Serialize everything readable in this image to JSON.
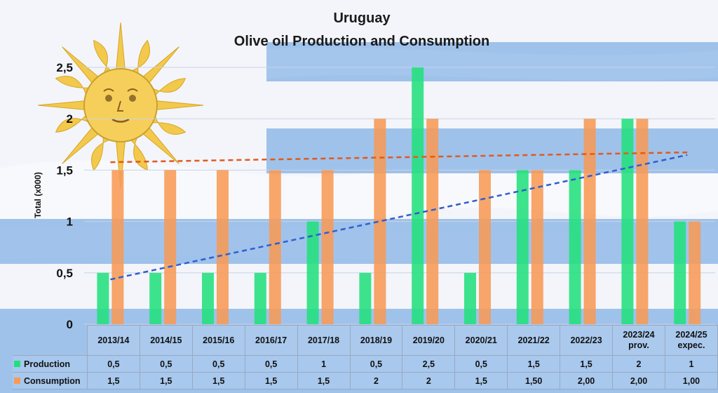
{
  "chart_data": {
    "type": "bar",
    "title": "Uruguay",
    "subtitle": "Olive oil Production and Consumption",
    "ylabel": "Total (x000)",
    "xlabel": "",
    "ylim": [
      0,
      2.5
    ],
    "yticks": [
      "0",
      "0,5",
      "1",
      "1,5",
      "2",
      "2,5"
    ],
    "categories": [
      "2013/14",
      "2014/15",
      "2015/16",
      "2016/17",
      "2017/18",
      "2018/19",
      "2019/20",
      "2020/21",
      "2021/22",
      "2022/23",
      "2023/24 prov.",
      "2024/25 expec."
    ],
    "category_lines": [
      [
        "2013/14"
      ],
      [
        "2014/15"
      ],
      [
        "2015/16"
      ],
      [
        "2016/17"
      ],
      [
        "2017/18"
      ],
      [
        "2018/19"
      ],
      [
        "2019/20"
      ],
      [
        "2020/21"
      ],
      [
        "2021/22"
      ],
      [
        "2022/23"
      ],
      [
        "2023/24",
        "prov."
      ],
      [
        "2024/25",
        "expec."
      ]
    ],
    "series": [
      {
        "name": "Production",
        "color": "#22e07c",
        "values": [
          0.5,
          0.5,
          0.5,
          0.5,
          1,
          0.5,
          2.5,
          0.5,
          1.5,
          1.5,
          2,
          1
        ],
        "labels": [
          "0,5",
          "0,5",
          "0,5",
          "0,5",
          "1",
          "0,5",
          "2,5",
          "0,5",
          "1,5",
          "1,5",
          "2",
          "1"
        ],
        "trendline": true,
        "trend_color": "#2f5fd0"
      },
      {
        "name": "Consumption",
        "color": "#f79a55",
        "values": [
          1.5,
          1.5,
          1.5,
          1.5,
          1.5,
          2,
          2,
          1.5,
          1.5,
          2,
          2,
          1
        ],
        "labels": [
          "1,5",
          "1,5",
          "1,5",
          "1,5",
          "1,5",
          "2",
          "2",
          "1,5",
          "1,50",
          "2,00",
          "2,00",
          "1,00"
        ],
        "trendline": true,
        "trend_color": "#e05a1e"
      }
    ],
    "legend": "data-table-left",
    "grid": true
  }
}
